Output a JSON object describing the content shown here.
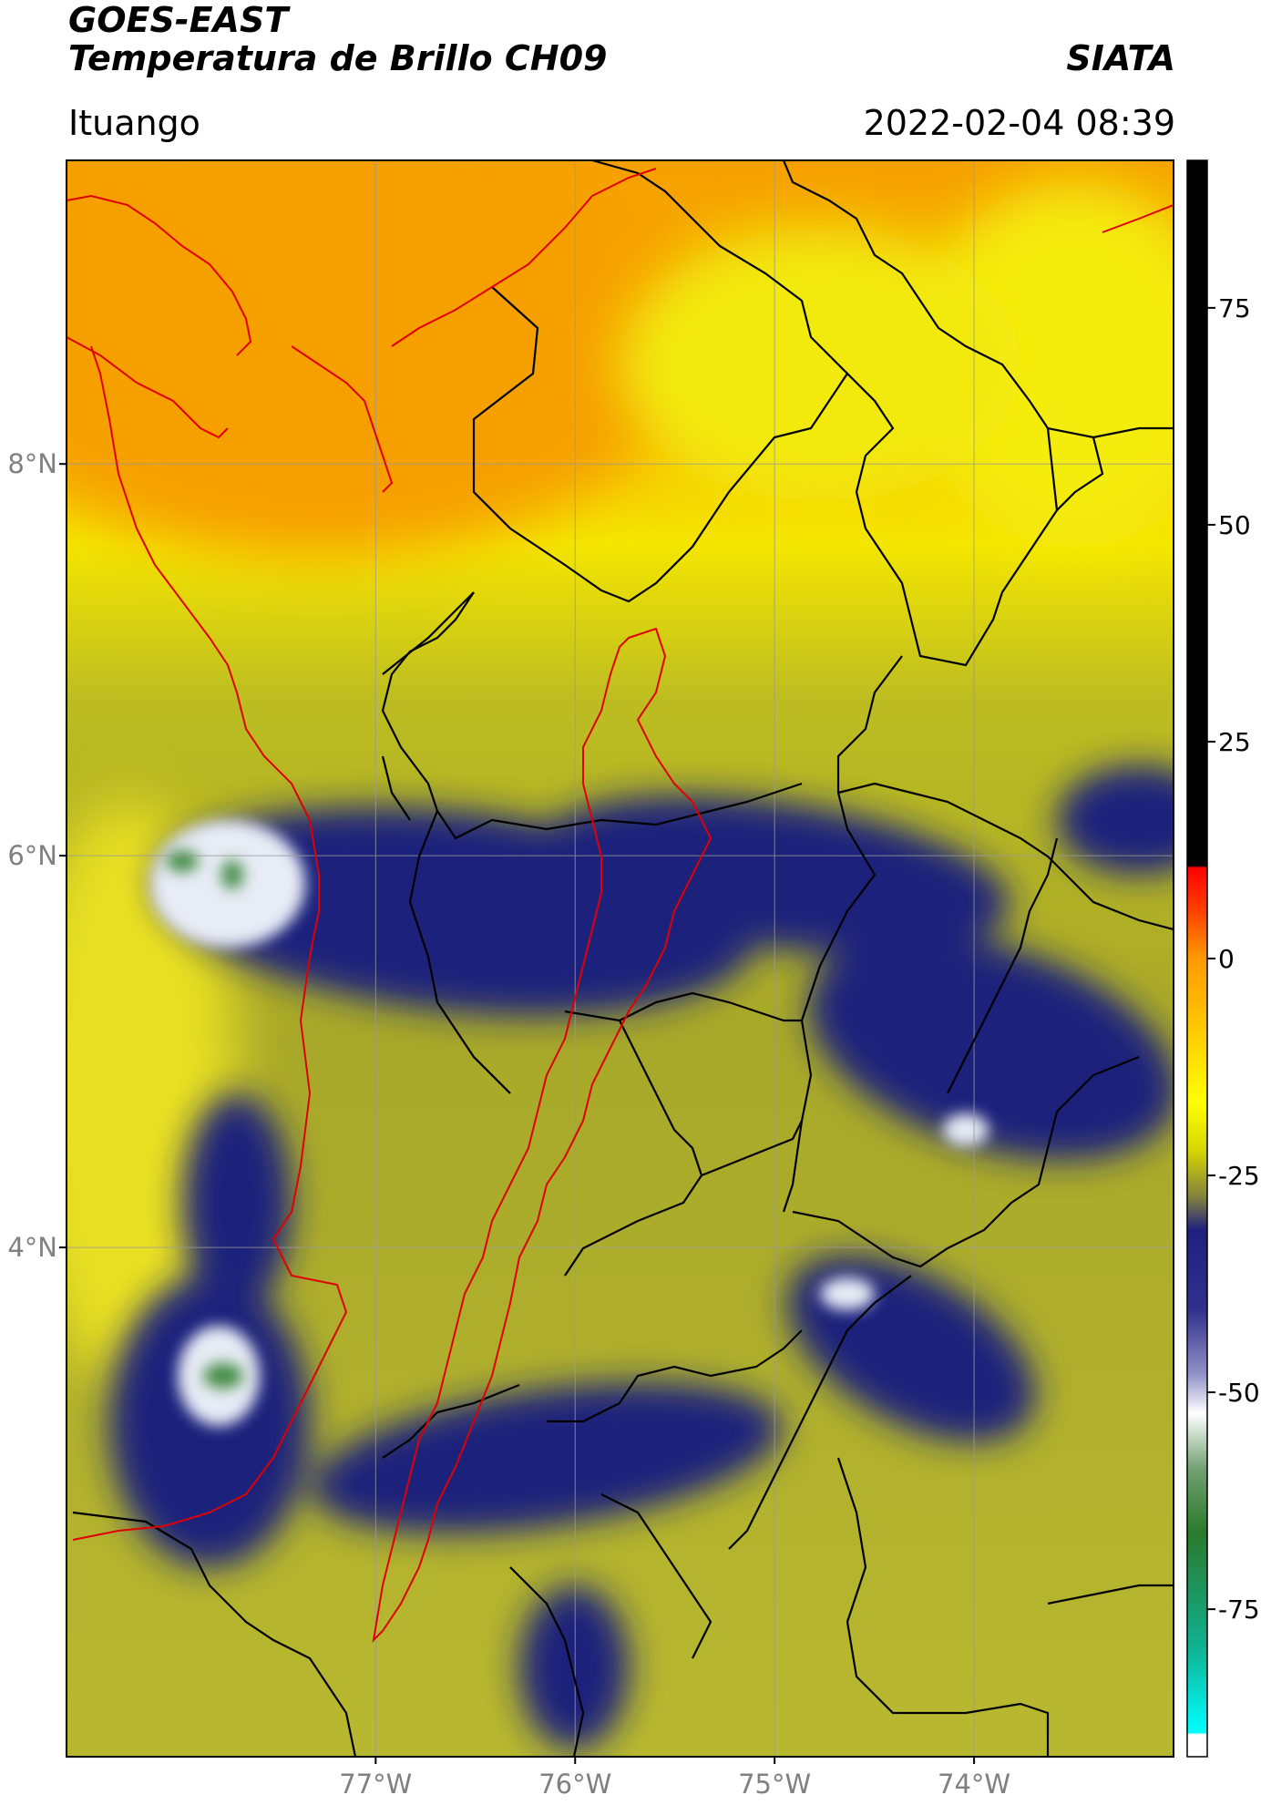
{
  "header": {
    "title_line1": "GOES-EAST",
    "title_line2": "Temperatura de Brillo CH09",
    "source": "SIATA",
    "region": "Ituango",
    "datetime": "2022-02-04 08:39"
  },
  "map": {
    "lon_range": [
      -78.55,
      -73.0
    ],
    "lat_range": [
      1.4,
      9.55
    ],
    "lat_ticks": [
      {
        "value": 8,
        "label": "8°N"
      },
      {
        "value": 6,
        "label": "6°N"
      },
      {
        "value": 4,
        "label": "4°N"
      }
    ],
    "lon_ticks": [
      {
        "value": -77,
        "label": "77°W"
      },
      {
        "value": -76,
        "label": "76°W"
      },
      {
        "value": -75,
        "label": "75°W"
      },
      {
        "value": -74,
        "label": "74°W"
      }
    ],
    "colors": {
      "warm": "#f7a200",
      "yellow": "#f8f000",
      "olive": "#9d9d2a",
      "navy": "#1a237e",
      "white": "#ffffff",
      "green": "#3a8a3a",
      "border_red": "#e00000",
      "border_black": "#000000",
      "grid": "#9a9a9a"
    }
  },
  "colorbar": {
    "range": [
      -92,
      92
    ],
    "ticks": [
      {
        "value": 75,
        "label": "75"
      },
      {
        "value": 50,
        "label": "50"
      },
      {
        "value": 25,
        "label": "25"
      },
      {
        "value": 0,
        "label": "0"
      },
      {
        "value": -25,
        "label": "-25"
      },
      {
        "value": -50,
        "label": "-50"
      },
      {
        "value": -75,
        "label": "-75"
      }
    ]
  }
}
